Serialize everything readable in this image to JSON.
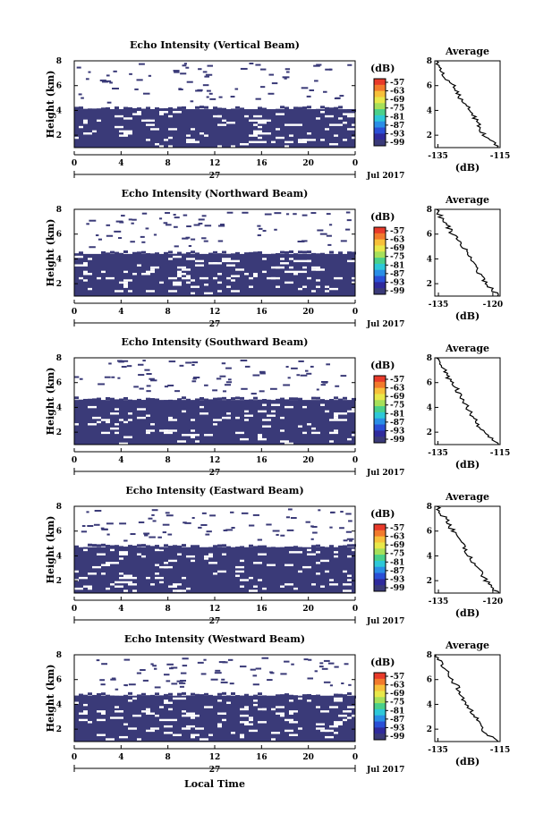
{
  "figure": {
    "xlabel": "Local Time",
    "date_label": "Jul 2017",
    "day_label": "27",
    "ylabel": "Height (km)",
    "colorbar_unit": "(dB)",
    "colorbar_ticks": [
      "-57",
      "-63",
      "-69",
      "-75",
      "-81",
      "-87",
      "-93",
      "-99"
    ],
    "colorbar_colors": [
      "#e83a2a",
      "#f27a2c",
      "#f7c03a",
      "#e8e84a",
      "#a6e05a",
      "#4ad08a",
      "#2ec8d8",
      "#2a8ee6",
      "#2a4fd6",
      "#2f2a9c",
      "#3a3a78"
    ],
    "fill_color": "#3a3a78",
    "average_title": "Average",
    "average_xlabel": "(dB)"
  },
  "chart_data": [
    {
      "type": "heatmap",
      "title": "Echo Intensity (Vertical Beam)",
      "xlabel": "Local Time",
      "ylabel": "Height (km)",
      "x_ticks": [
        "0",
        "4",
        "8",
        "12",
        "16",
        "20",
        "0"
      ],
      "y_ticks": [
        "2",
        "4",
        "6",
        "8"
      ],
      "xlim": [
        0,
        24
      ],
      "ylim": [
        1,
        8
      ],
      "echo_top_km": 4.1,
      "average": {
        "title": "Average",
        "xlabel": "(dB)",
        "xlim": [
          -136,
          -115
        ],
        "x_ticks": [
          "-135",
          "-115"
        ],
        "ylim": [
          1,
          8
        ],
        "y_ticks": [
          "2",
          "4",
          "6",
          "8"
        ],
        "heights": [
          1,
          1.5,
          2,
          2.5,
          3,
          3.5,
          4,
          4.5,
          5,
          5.5,
          6,
          6.5,
          7,
          7.5,
          8
        ],
        "values": [
          -115.5,
          -117.5,
          -120,
          -121.5,
          -122,
          -123.5,
          -125,
          -126,
          -128,
          -129,
          -130,
          -132,
          -133.5,
          -134,
          -135.5
        ]
      }
    },
    {
      "type": "heatmap",
      "title": "Echo Intensity (Northward Beam)",
      "xlabel": "Local Time",
      "ylabel": "Height (km)",
      "x_ticks": [
        "0",
        "4",
        "8",
        "12",
        "16",
        "20",
        "0"
      ],
      "y_ticks": [
        "2",
        "4",
        "6",
        "8"
      ],
      "xlim": [
        0,
        24
      ],
      "ylim": [
        1,
        8
      ],
      "echo_top_km": 4.4,
      "average": {
        "title": "Average",
        "xlabel": "(dB)",
        "xlim": [
          -136,
          -118
        ],
        "x_ticks": [
          "-135",
          "-120"
        ],
        "ylim": [
          1,
          8
        ],
        "y_ticks": [
          "2",
          "4",
          "6",
          "8"
        ],
        "heights": [
          1,
          1.5,
          2,
          2.5,
          3,
          3.5,
          4,
          4.5,
          5,
          5.5,
          6,
          6.5,
          7,
          7.5,
          8
        ],
        "values": [
          -118.5,
          -120,
          -122,
          -123,
          -124,
          -125,
          -126,
          -127,
          -128,
          -129.5,
          -131,
          -132,
          -133.5,
          -134.5,
          -135.5
        ]
      }
    },
    {
      "type": "heatmap",
      "title": "Echo Intensity (Southward Beam)",
      "xlabel": "Local Time",
      "ylabel": "Height (km)",
      "x_ticks": [
        "0",
        "4",
        "8",
        "12",
        "16",
        "20",
        "0"
      ],
      "y_ticks": [
        "2",
        "4",
        "6",
        "8"
      ],
      "xlim": [
        0,
        24
      ],
      "ylim": [
        1,
        8
      ],
      "echo_top_km": 4.6,
      "average": {
        "title": "Average",
        "xlabel": "(dB)",
        "xlim": [
          -136,
          -115
        ],
        "x_ticks": [
          "-135",
          "-115"
        ],
        "ylim": [
          1,
          8
        ],
        "y_ticks": [
          "2",
          "4",
          "6",
          "8"
        ],
        "heights": [
          1,
          1.5,
          2,
          2.5,
          3,
          3.5,
          4,
          4.5,
          5,
          5.5,
          6,
          6.5,
          7,
          7.5,
          8
        ],
        "values": [
          -115.5,
          -118,
          -120.5,
          -122,
          -123,
          -124.5,
          -125.5,
          -127,
          -128,
          -129,
          -130.5,
          -132,
          -133,
          -134.5,
          -135.5
        ]
      }
    },
    {
      "type": "heatmap",
      "title": "Echo Intensity (Eastward Beam)",
      "xlabel": "Local Time",
      "ylabel": "Height (km)",
      "x_ticks": [
        "0",
        "4",
        "8",
        "12",
        "16",
        "20",
        "0"
      ],
      "y_ticks": [
        "2",
        "4",
        "6",
        "8"
      ],
      "xlim": [
        0,
        24
      ],
      "ylim": [
        1,
        8
      ],
      "echo_top_km": 4.7,
      "average": {
        "title": "Average",
        "xlabel": "(dB)",
        "xlim": [
          -136,
          -118
        ],
        "x_ticks": [
          "-135",
          "-120"
        ],
        "ylim": [
          1,
          8
        ],
        "y_ticks": [
          "2",
          "4",
          "6",
          "8"
        ],
        "heights": [
          1,
          1.5,
          2,
          2.5,
          3,
          3.5,
          4,
          4.5,
          5,
          5.5,
          6,
          6.5,
          7,
          7.5,
          8
        ],
        "values": [
          -118.5,
          -120.5,
          -122,
          -123,
          -124,
          -125.5,
          -126.5,
          -127.5,
          -128.5,
          -129.5,
          -131,
          -132,
          -133,
          -134.5,
          -135.5
        ]
      }
    },
    {
      "type": "heatmap",
      "title": "Echo Intensity (Westward Beam)",
      "xlabel": "Local Time",
      "ylabel": "Height (km)",
      "x_ticks": [
        "0",
        "4",
        "8",
        "12",
        "16",
        "20",
        "0"
      ],
      "y_ticks": [
        "2",
        "4",
        "6",
        "8"
      ],
      "xlim": [
        0,
        24
      ],
      "ylim": [
        1,
        8
      ],
      "echo_top_km": 4.7,
      "average": {
        "title": "Average",
        "xlabel": "(dB)",
        "xlim": [
          -136,
          -115
        ],
        "x_ticks": [
          "-135",
          "-115"
        ],
        "ylim": [
          1,
          8
        ],
        "y_ticks": [
          "2",
          "4",
          "6",
          "8"
        ],
        "heights": [
          1,
          1.5,
          2,
          2.5,
          3,
          3.5,
          4,
          4.5,
          5,
          5.5,
          6,
          6.5,
          7,
          7.5,
          8
        ],
        "values": [
          -116,
          -118.5,
          -121,
          -122,
          -123,
          -124.5,
          -125.5,
          -127,
          -128,
          -129,
          -130.5,
          -132,
          -133,
          -134.5,
          -135.5
        ]
      }
    }
  ]
}
